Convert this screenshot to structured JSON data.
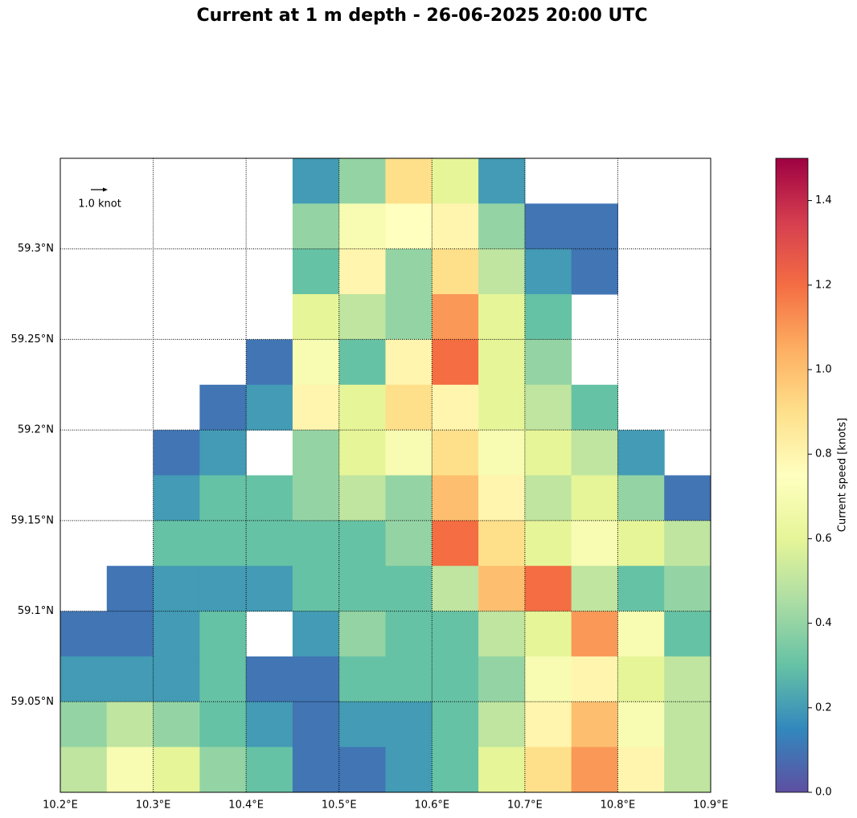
{
  "chart_data": {
    "type": "heatmap",
    "title": "Current at 1 m depth - 26-06-2025 20:00 UTC",
    "quiver_key": "1.0 knot",
    "colorbar_label": "Current speed [knots]",
    "x": [
      10.2,
      10.25,
      10.3,
      10.35,
      10.4,
      10.45,
      10.5,
      10.55,
      10.6,
      10.65,
      10.7,
      10.75,
      10.8,
      10.85
    ],
    "y": [
      59.325,
      59.3,
      59.275,
      59.25,
      59.225,
      59.2,
      59.175,
      59.15,
      59.125,
      59.1,
      59.075,
      59.05,
      59.025,
      59.0
    ],
    "values": [
      [
        null,
        null,
        null,
        null,
        null,
        0.2,
        0.4,
        0.9,
        0.6,
        0.2,
        null,
        null,
        null,
        null
      ],
      [
        null,
        null,
        null,
        null,
        null,
        0.4,
        0.7,
        0.75,
        0.8,
        0.4,
        0.1,
        0.1,
        null,
        null
      ],
      [
        null,
        null,
        null,
        null,
        null,
        0.3,
        0.8,
        0.4,
        0.9,
        0.5,
        0.2,
        0.1,
        null,
        null
      ],
      [
        null,
        null,
        null,
        null,
        null,
        0.6,
        0.5,
        0.4,
        1.1,
        0.6,
        0.3,
        null,
        null,
        null
      ],
      [
        null,
        null,
        null,
        null,
        0.1,
        0.7,
        0.3,
        0.8,
        1.2,
        0.6,
        0.4,
        null,
        null,
        null
      ],
      [
        null,
        null,
        null,
        0.1,
        0.2,
        0.8,
        0.6,
        0.9,
        0.8,
        0.6,
        0.5,
        0.3,
        null,
        null
      ],
      [
        null,
        null,
        0.1,
        0.2,
        null,
        0.4,
        0.6,
        0.7,
        0.9,
        0.7,
        0.6,
        0.5,
        0.2,
        null
      ],
      [
        null,
        null,
        0.2,
        0.3,
        0.3,
        0.4,
        0.5,
        0.4,
        1.0,
        0.8,
        0.5,
        0.6,
        0.4,
        0.1
      ],
      [
        null,
        null,
        0.3,
        0.3,
        0.3,
        0.3,
        0.3,
        0.4,
        1.2,
        0.9,
        0.6,
        0.7,
        0.6,
        0.5
      ],
      [
        null,
        0.1,
        0.2,
        0.2,
        0.2,
        0.3,
        0.3,
        0.3,
        0.5,
        1.0,
        1.2,
        0.5,
        0.3,
        0.4
      ],
      [
        0.1,
        0.1,
        0.2,
        0.3,
        null,
        0.2,
        0.4,
        0.3,
        0.3,
        0.5,
        0.6,
        1.1,
        0.7,
        0.3
      ],
      [
        0.2,
        0.2,
        0.2,
        0.3,
        0.1,
        0.1,
        0.3,
        0.3,
        0.3,
        0.4,
        0.7,
        0.8,
        0.6,
        0.5
      ],
      [
        0.4,
        0.5,
        0.4,
        0.3,
        0.2,
        0.1,
        0.2,
        0.2,
        0.3,
        0.5,
        0.8,
        1.0,
        0.7,
        0.5
      ],
      [
        0.5,
        0.7,
        0.6,
        0.4,
        0.3,
        0.1,
        0.1,
        0.2,
        0.3,
        0.6,
        0.9,
        1.1,
        0.8,
        0.5
      ]
    ],
    "xlim": [
      10.2,
      10.9
    ],
    "ylim": [
      59.0,
      59.35
    ],
    "xticks": [
      {
        "value": 10.2,
        "label": "10.2°E"
      },
      {
        "value": 10.3,
        "label": "10.3°E"
      },
      {
        "value": 10.4,
        "label": "10.4°E"
      },
      {
        "value": 10.5,
        "label": "10.5°E"
      },
      {
        "value": 10.6,
        "label": "10.6°E"
      },
      {
        "value": 10.7,
        "label": "10.7°E"
      },
      {
        "value": 10.8,
        "label": "10.8°E"
      },
      {
        "value": 10.9,
        "label": "10.9°E"
      }
    ],
    "yticks": [
      {
        "value": 59.05,
        "label": "59.05°N"
      },
      {
        "value": 59.1,
        "label": "59.1°N"
      },
      {
        "value": 59.15,
        "label": "59.15°N"
      },
      {
        "value": 59.2,
        "label": "59.2°N"
      },
      {
        "value": 59.25,
        "label": "59.25°N"
      },
      {
        "value": 59.3,
        "label": "59.3°N"
      }
    ],
    "clim": [
      0,
      1.5
    ],
    "cticks": [
      {
        "value": 0,
        "label": "0.0"
      },
      {
        "value": 0.2,
        "label": "0.2"
      },
      {
        "value": 0.4,
        "label": "0.4"
      },
      {
        "value": 0.6,
        "label": "0.6"
      },
      {
        "value": 0.8,
        "label": "0.8"
      },
      {
        "value": 1,
        "label": "1.0"
      },
      {
        "value": 1.2,
        "label": "1.2"
      },
      {
        "value": 1.4,
        "label": "1.4"
      }
    ],
    "colormap": [
      "#5e4fa2",
      "#3288bd",
      "#66c2a5",
      "#abdda4",
      "#e6f598",
      "#ffffbf",
      "#fee08b",
      "#fdae61",
      "#f46d43",
      "#d53e4f",
      "#9e0142"
    ],
    "grid": true
  }
}
